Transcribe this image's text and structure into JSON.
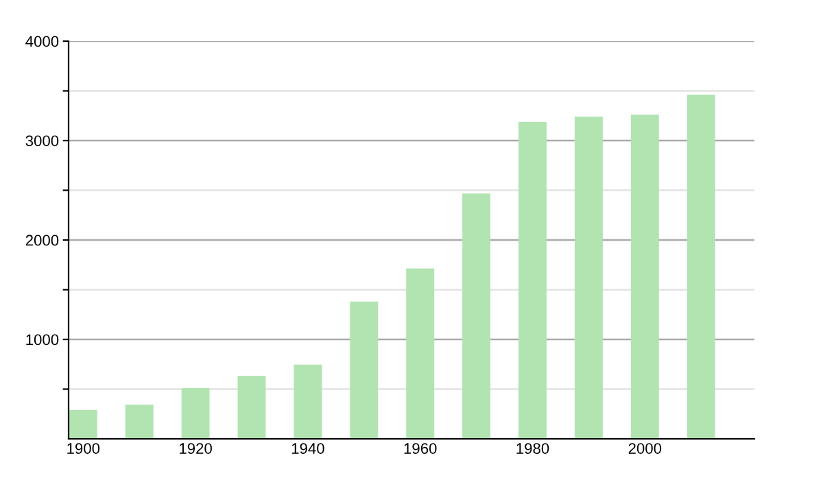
{
  "chart_data": {
    "type": "bar",
    "x": [
      1900,
      1910,
      1920,
      1930,
      1940,
      1950,
      1960,
      1970,
      1980,
      1990,
      2000,
      2010
    ],
    "values": [
      290,
      345,
      511,
      635,
      746,
      1381,
      1713,
      2468,
      3186,
      3241,
      3260,
      3462
    ],
    "color": "#b1e4b1",
    "xlim": [
      1897.4,
      2019.5
    ],
    "xticks": [
      1900,
      1920,
      1940,
      1960,
      1980,
      2000
    ],
    "ylim": [
      0,
      4000
    ],
    "yticks": [
      {
        "value": 500,
        "label": null
      },
      1000,
      {
        "value": 1500,
        "label": null
      },
      2000,
      {
        "value": 2500,
        "label": null
      },
      3000,
      {
        "value": 3500,
        "label": null
      },
      4000
    ],
    "grid": "y",
    "legend": false
  }
}
